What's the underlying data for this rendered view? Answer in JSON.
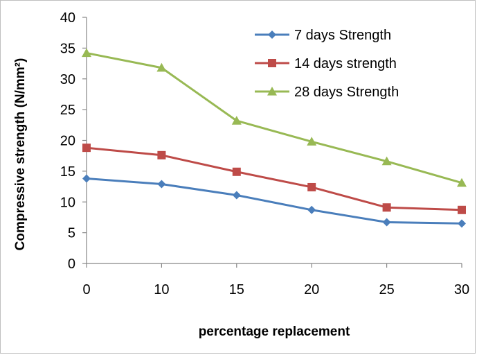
{
  "chart_data": {
    "type": "line",
    "title": "",
    "xlabel": "percentage replacement",
    "ylabel": "Compressive strength (N/mm²)",
    "x": [
      0,
      10,
      15,
      20,
      25,
      30
    ],
    "ylim": [
      0,
      40
    ],
    "yticks": [
      0,
      5,
      10,
      15,
      20,
      25,
      30,
      35,
      40
    ],
    "grid": false,
    "legend_position": "top-right",
    "series": [
      {
        "name": "7 days Strength",
        "values": [
          13.8,
          12.9,
          11.1,
          8.7,
          6.7,
          6.5
        ],
        "color": "#4a7ebb",
        "marker": "diamond"
      },
      {
        "name": "14 days strength",
        "values": [
          18.8,
          17.6,
          14.9,
          12.4,
          9.1,
          8.7
        ],
        "color": "#be4b48",
        "marker": "square"
      },
      {
        "name": "28 days Strength",
        "values": [
          34.2,
          31.8,
          23.2,
          19.8,
          16.6,
          13.1
        ],
        "color": "#98b954",
        "marker": "triangle"
      }
    ]
  }
}
